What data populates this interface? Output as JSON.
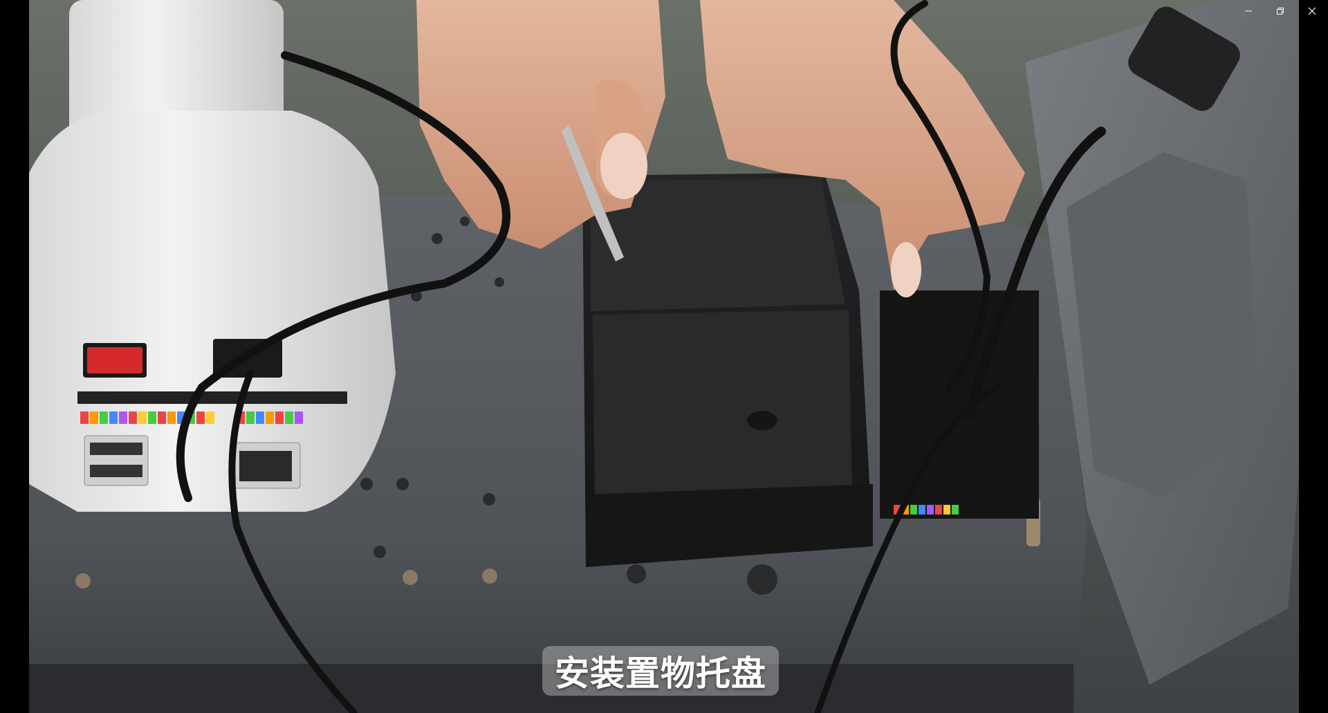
{
  "window": {
    "controls": {
      "minimize_icon": "minimize-icon",
      "restore_icon": "restore-icon",
      "close_icon": "close-icon"
    }
  },
  "video": {
    "subtitle": "安装置物托盘"
  },
  "colors": {
    "background": "#000000",
    "base_plate": "#55595e",
    "tray": "#1c1c1e",
    "robot_body": "#e9e9e9",
    "subtitle_text": "#ffffff"
  }
}
